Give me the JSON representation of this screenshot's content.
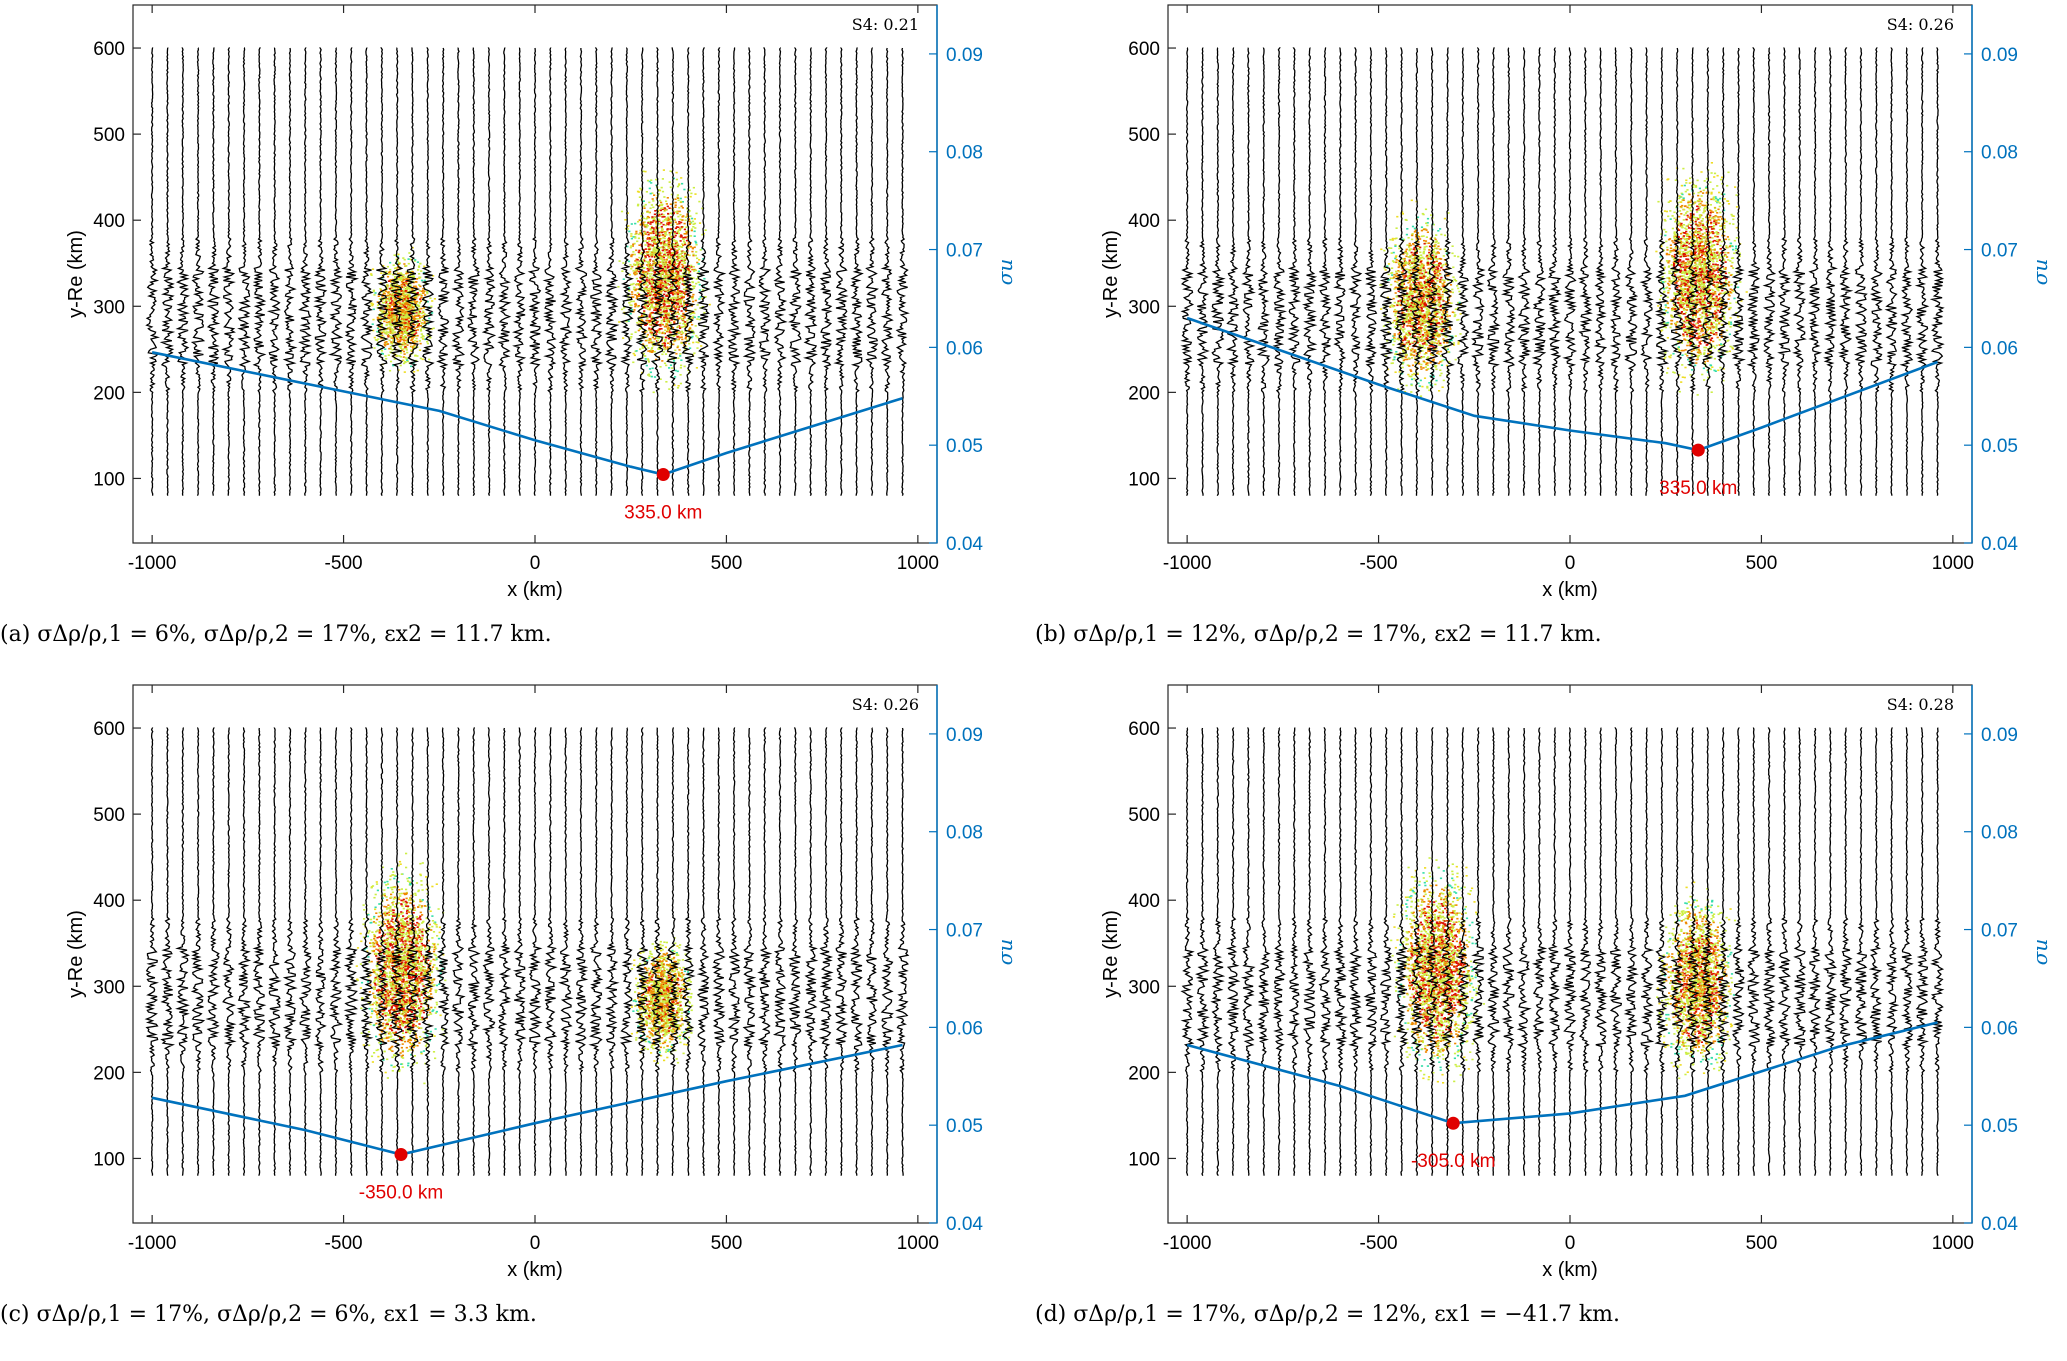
{
  "chart_data": [
    {
      "type": "line",
      "id": "a",
      "caption": "(a) σΔρ/ρ,1 = 6%, σΔρ/ρ,2 = 17%, εx2 = 11.7 km.",
      "xlabel": "x (km)",
      "ylabel": "y-Re (km)",
      "y2label": "σu",
      "xlim": [
        -1050,
        1050
      ],
      "ylim": [
        25,
        650
      ],
      "y2lim": [
        0.04,
        0.095
      ],
      "xticks": [
        -1000,
        -500,
        0,
        500,
        1000
      ],
      "yticks": [
        100,
        200,
        300,
        400,
        500,
        600
      ],
      "y2ticks": [
        0.04,
        0.05,
        0.06,
        0.07,
        0.08,
        0.09
      ],
      "s4_label": "S4: 0.21",
      "blobs": [
        {
          "x": -350,
          "y": 295,
          "width": 230,
          "height": 150,
          "intensity": 0.45
        },
        {
          "x": 335,
          "y": 335,
          "width": 310,
          "height": 270,
          "intensity": 1.0
        }
      ],
      "series": [
        {
          "x": [
            -1000,
            -500,
            -250,
            0,
            250,
            335,
            500,
            960
          ],
          "y": [
            0.0595,
            0.0555,
            0.0535,
            0.0505,
            0.0478,
            0.047,
            0.0492,
            0.0548
          ]
        }
      ],
      "min_marker": {
        "x": 335,
        "y": 0.047,
        "label": "335.0 km"
      }
    },
    {
      "type": "line",
      "id": "b",
      "caption": "(b) σΔρ/ρ,1 = 12%, σΔρ/ρ,2 = 17%, εx2 = 11.7 km.",
      "xlabel": "x (km)",
      "ylabel": "y-Re (km)",
      "y2label": "σu",
      "xlim": [
        -1050,
        1050
      ],
      "ylim": [
        25,
        650
      ],
      "y2lim": [
        0.04,
        0.095
      ],
      "xticks": [
        -1000,
        -500,
        0,
        500,
        1000
      ],
      "yticks": [
        100,
        200,
        300,
        400,
        500,
        600
      ],
      "y2ticks": [
        0.04,
        0.05,
        0.06,
        0.07,
        0.08,
        0.09
      ],
      "s4_label": "S4: 0.26",
      "blobs": [
        {
          "x": -390,
          "y": 305,
          "width": 290,
          "height": 230,
          "intensity": 0.75
        },
        {
          "x": 335,
          "y": 335,
          "width": 310,
          "height": 270,
          "intensity": 1.0
        }
      ],
      "series": [
        {
          "x": [
            -1000,
            -500,
            -250,
            0,
            250,
            335,
            500,
            960
          ],
          "y": [
            0.063,
            0.0562,
            0.053,
            0.0515,
            0.0502,
            0.0495,
            0.0518,
            0.0585
          ]
        }
      ],
      "min_marker": {
        "x": 335,
        "y": 0.0495,
        "label": "335.0 km"
      }
    },
    {
      "type": "line",
      "id": "c",
      "caption": "(c) σΔρ/ρ,1 = 17%, σΔρ/ρ,2 = 6%, εx1 = 3.3 km.",
      "xlabel": "x (km)",
      "ylabel": "y-Re (km)",
      "y2label": "σu",
      "xlim": [
        -1050,
        1050
      ],
      "ylim": [
        25,
        650
      ],
      "y2lim": [
        0.04,
        0.095
      ],
      "xticks": [
        -1000,
        -500,
        0,
        500,
        1000
      ],
      "yticks": [
        100,
        200,
        300,
        400,
        500,
        600
      ],
      "y2ticks": [
        0.04,
        0.05,
        0.06,
        0.07,
        0.08,
        0.09
      ],
      "s4_label": "S4: 0.26",
      "blobs": [
        {
          "x": -350,
          "y": 320,
          "width": 310,
          "height": 270,
          "intensity": 1.0
        },
        {
          "x": 330,
          "y": 285,
          "width": 230,
          "height": 150,
          "intensity": 0.45
        }
      ],
      "series": [
        {
          "x": [
            -1000,
            -600,
            -350,
            0,
            500,
            960
          ],
          "y": [
            0.0528,
            0.0495,
            0.047,
            0.0502,
            0.0545,
            0.0582
          ]
        }
      ],
      "min_marker": {
        "x": -350,
        "y": 0.047,
        "label": "-350.0 km"
      }
    },
    {
      "type": "line",
      "id": "d",
      "caption": "(d) σΔρ/ρ,1 = 17%, σΔρ/ρ,2 = 12%, εx1 = −41.7 km.",
      "xlabel": "x (km)",
      "ylabel": "y-Re (km)",
      "y2label": "σu",
      "xlim": [
        -1050,
        1050
      ],
      "ylim": [
        25,
        650
      ],
      "y2lim": [
        0.04,
        0.095
      ],
      "xticks": [
        -1000,
        -500,
        0,
        500,
        1000
      ],
      "yticks": [
        100,
        200,
        300,
        400,
        500,
        600
      ],
      "y2ticks": [
        0.04,
        0.05,
        0.06,
        0.07,
        0.08,
        0.09
      ],
      "s4_label": "S4: 0.28",
      "blobs": [
        {
          "x": -350,
          "y": 320,
          "width": 310,
          "height": 270,
          "intensity": 1.0
        },
        {
          "x": 330,
          "y": 305,
          "width": 290,
          "height": 230,
          "intensity": 0.75
        }
      ],
      "series": [
        {
          "x": [
            -1000,
            -600,
            -305,
            0,
            300,
            700,
            960
          ],
          "y": [
            0.0582,
            0.054,
            0.0502,
            0.0512,
            0.053,
            0.058,
            0.0605
          ]
        }
      ],
      "min_marker": {
        "x": -305,
        "y": 0.0502,
        "label": "-305.0 km"
      }
    }
  ],
  "colors": {
    "line": "#0072BD",
    "marker": "#e00000",
    "traces": "#000000",
    "blob": [
      "#ccee44",
      "#eedd22",
      "#33ddaa",
      "#ee8800",
      "#dd1100"
    ]
  }
}
